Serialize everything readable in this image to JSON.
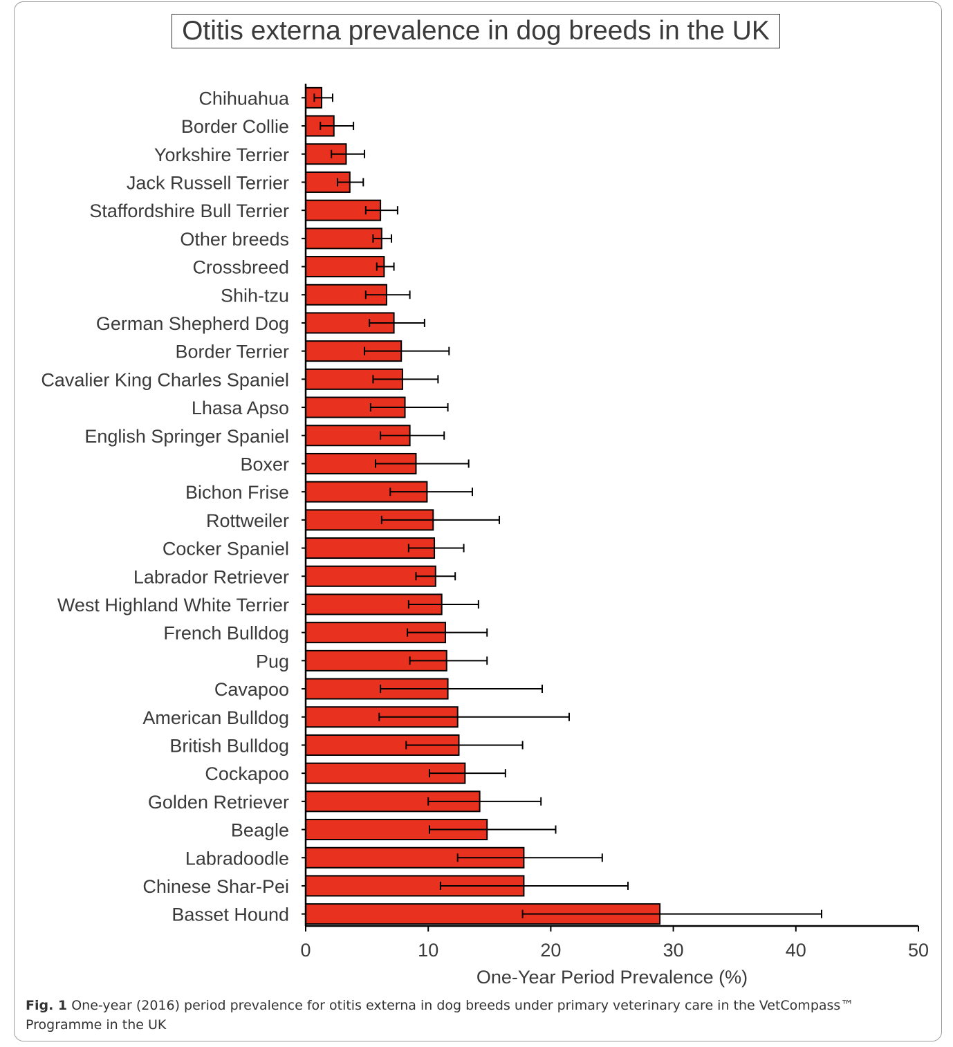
{
  "chart_data": {
    "type": "bar",
    "orientation": "horizontal",
    "title": "Otitis externa prevalence in dog breeds in the UK",
    "xlabel": "One-Year Period Prevalence (%)",
    "ylabel": "",
    "xlim": [
      0,
      50
    ],
    "xticks": [
      0,
      10,
      20,
      30,
      40,
      50
    ],
    "bar_color": "#e8321f",
    "error_bars": true,
    "grid": false,
    "categories": [
      "Chihuahua",
      "Border Collie",
      "Yorkshire Terrier",
      "Jack Russell Terrier",
      "Staffordshire Bull Terrier",
      "Other breeds",
      "Crossbreed",
      "Shih-tzu",
      "German Shepherd Dog",
      "Border Terrier",
      "Cavalier King Charles Spaniel",
      "Lhasa Apso",
      "English Springer Spaniel",
      "Boxer",
      "Bichon Frise",
      "Rottweiler",
      "Cocker Spaniel",
      "Labrador Retriever",
      "West Highland White Terrier",
      "French Bulldog",
      "Pug",
      "Cavapoo",
      "American Bulldog",
      "British Bulldog",
      "Cockapoo",
      "Golden Retriever",
      "Beagle",
      "Labradoodle",
      "Chinese Shar-Pei",
      "Basset Hound"
    ],
    "values": [
      1.3,
      2.3,
      3.3,
      3.6,
      6.1,
      6.2,
      6.4,
      6.6,
      7.2,
      7.8,
      7.9,
      8.1,
      8.5,
      9.0,
      9.9,
      10.4,
      10.5,
      10.6,
      11.1,
      11.4,
      11.5,
      11.6,
      12.4,
      12.5,
      13.0,
      14.2,
      14.8,
      17.8,
      17.8,
      28.9
    ],
    "ci_lower": [
      0.7,
      1.2,
      2.1,
      2.6,
      4.9,
      5.5,
      5.8,
      4.9,
      5.2,
      4.8,
      5.5,
      5.3,
      6.1,
      5.7,
      6.9,
      6.2,
      8.4,
      9.0,
      8.4,
      8.3,
      8.5,
      6.1,
      6.0,
      8.2,
      10.1,
      10.0,
      10.1,
      12.4,
      11.0,
      17.7
    ],
    "ci_upper": [
      2.2,
      3.9,
      4.8,
      4.7,
      7.5,
      7.0,
      7.2,
      8.5,
      9.7,
      11.7,
      10.8,
      11.6,
      11.3,
      13.3,
      13.6,
      15.8,
      12.9,
      12.2,
      14.1,
      14.8,
      14.8,
      19.3,
      21.5,
      17.7,
      16.3,
      19.2,
      20.4,
      24.2,
      26.3,
      42.1
    ]
  },
  "caption": {
    "label": "Fig. 1",
    "text": " One-year (2016) period prevalence for otitis externa in dog breeds under primary veterinary care in the VetCompass™ Programme in the UK"
  }
}
